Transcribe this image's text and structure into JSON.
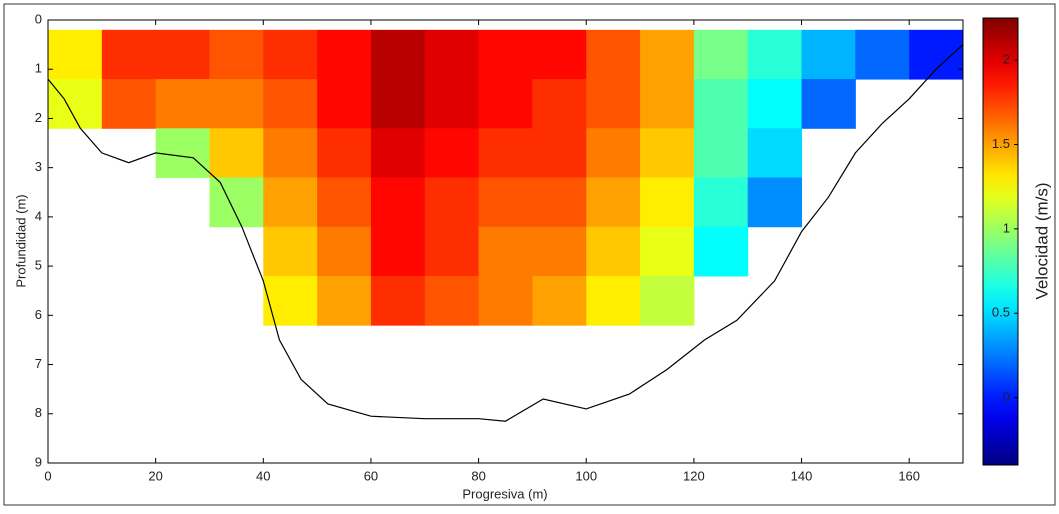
{
  "chart_data": {
    "type": "heatmap",
    "colormap": "jet",
    "xlabel": "Progresiva (m)",
    "ylabel": "Profundidad (m)",
    "xlim": [
      0,
      170
    ],
    "xticks": [
      0,
      20,
      40,
      60,
      80,
      100,
      120,
      140,
      160
    ],
    "ylim": [
      0,
      9
    ],
    "yticks": [
      0,
      1,
      2,
      3,
      4,
      5,
      6,
      7,
      8,
      9
    ],
    "y_inverted": true,
    "x_bins": [
      0,
      10,
      20,
      30,
      40,
      50,
      60,
      70,
      80,
      90,
      100,
      110,
      120,
      130,
      140,
      150,
      160,
      170
    ],
    "y_bins": [
      0.2,
      1.2,
      2.2,
      3.2,
      4.2,
      5.2,
      6.2
    ],
    "values": [
      [
        1.3,
        1.8,
        1.8,
        1.7,
        1.8,
        1.9,
        2.1,
        2.0,
        1.9,
        1.9,
        1.7,
        1.5,
        0.9,
        0.7,
        0.4,
        0.2,
        0.0
      ],
      [
        1.2,
        1.7,
        1.6,
        1.6,
        1.7,
        1.9,
        2.1,
        2.0,
        1.9,
        1.8,
        1.7,
        1.5,
        0.8,
        0.6,
        0.2,
        null,
        null
      ],
      [
        null,
        null,
        1.0,
        1.4,
        1.6,
        1.8,
        2.0,
        1.9,
        1.8,
        1.8,
        1.6,
        1.4,
        0.8,
        0.5,
        null,
        null,
        null
      ],
      [
        null,
        null,
        null,
        1.0,
        1.5,
        1.7,
        1.9,
        1.8,
        1.7,
        1.7,
        1.5,
        1.3,
        0.7,
        0.3,
        null,
        null,
        null
      ],
      [
        null,
        null,
        null,
        null,
        1.4,
        1.6,
        1.9,
        1.8,
        1.6,
        1.6,
        1.4,
        1.2,
        0.6,
        null,
        null,
        null,
        null
      ],
      [
        null,
        null,
        null,
        null,
        1.3,
        1.5,
        1.8,
        1.7,
        1.6,
        1.5,
        1.3,
        1.1,
        null,
        null,
        null,
        null,
        null
      ]
    ],
    "bed": {
      "color": "#000000",
      "x": [
        0,
        3,
        6,
        10,
        15,
        20,
        27,
        32,
        36,
        40,
        43,
        47,
        52,
        60,
        70,
        80,
        85,
        92,
        100,
        108,
        115,
        122,
        128,
        135,
        140,
        145,
        150,
        155,
        160,
        165,
        170
      ],
      "y": [
        1.2,
        1.6,
        2.2,
        2.7,
        2.9,
        2.7,
        2.8,
        3.3,
        4.2,
        5.3,
        6.5,
        7.3,
        7.8,
        8.05,
        8.1,
        8.1,
        8.15,
        7.7,
        7.9,
        7.6,
        7.1,
        6.5,
        6.1,
        5.3,
        4.3,
        3.6,
        2.7,
        2.1,
        1.6,
        1.0,
        0.5
      ]
    },
    "colorbar": {
      "label": "Velocidad (m/s)",
      "lim": [
        -0.4,
        2.25
      ],
      "ticks": [
        0,
        0.5,
        1,
        1.5,
        2
      ]
    }
  }
}
